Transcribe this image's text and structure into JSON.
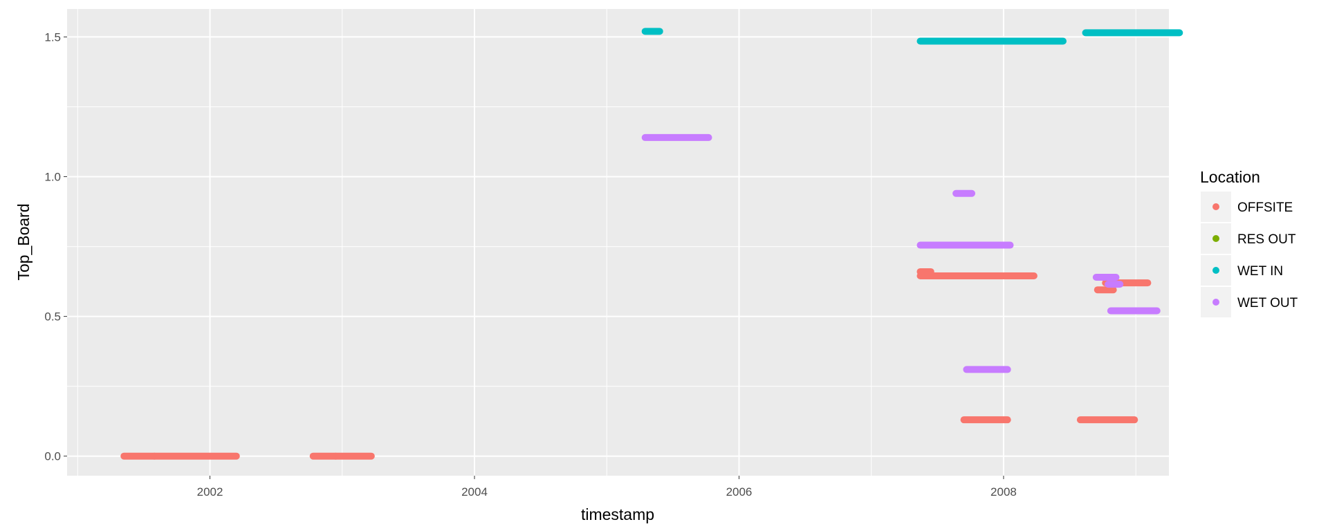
{
  "chart_data": {
    "type": "scatter",
    "xlabel": "timestamp",
    "ylabel": "Top_Board",
    "x_ticks": [
      "2002",
      "2004",
      "2006",
      "2008"
    ],
    "y_ticks": [
      "0.0",
      "0.5",
      "1.0",
      "1.5"
    ],
    "xlim": [
      2000.92,
      2009.25
    ],
    "ylim": [
      -0.07,
      1.6
    ],
    "grid": true,
    "legend": {
      "title": "Location",
      "placement": "right",
      "entries": [
        {
          "name": "OFFSITE",
          "color": "#F8766D"
        },
        {
          "name": "RES OUT",
          "color": "#7CAE00"
        },
        {
          "name": "WET IN",
          "color": "#00BFC4"
        },
        {
          "name": "WET OUT",
          "color": "#C77CFF"
        }
      ]
    },
    "series": [
      {
        "name": "OFFSITE",
        "color": "#F8766D",
        "segments": [
          {
            "x": [
              2001.35,
              2001.58
            ],
            "y": 0.0
          },
          {
            "x": [
              2001.58,
              2002.2
            ],
            "y": 0.0
          },
          {
            "x": [
              2002.78,
              2002.95
            ],
            "y": 0.0
          },
          {
            "x": [
              2002.95,
              2003.22
            ],
            "y": 0.0
          },
          {
            "x": [
              2007.37,
              2007.45
            ],
            "y": 0.66
          },
          {
            "x": [
              2007.37,
              2008.23
            ],
            "y": 0.645
          },
          {
            "x": [
              2007.7,
              2008.03
            ],
            "y": 0.13
          },
          {
            "x": [
              2008.58,
              2008.99
            ],
            "y": 0.13
          },
          {
            "x": [
              2008.71,
              2008.83
            ],
            "y": 0.595
          },
          {
            "x": [
              2008.77,
              2009.09
            ],
            "y": 0.62
          }
        ]
      },
      {
        "name": "RES OUT",
        "color": "#7CAE00",
        "segments": []
      },
      {
        "name": "WET IN",
        "color": "#00BFC4",
        "segments": [
          {
            "x": [
              2005.29,
              2005.4
            ],
            "y": 1.52
          },
          {
            "x": [
              2007.37,
              2007.88
            ],
            "y": 1.485
          },
          {
            "x": [
              2007.88,
              2008.45
            ],
            "y": 1.485
          },
          {
            "x": [
              2008.62,
              2009.33
            ],
            "y": 1.515
          }
        ]
      },
      {
        "name": "WET OUT",
        "color": "#C77CFF",
        "segments": [
          {
            "x": [
              2005.29,
              2005.77
            ],
            "y": 1.14
          },
          {
            "x": [
              2007.37,
              2008.05
            ],
            "y": 0.755
          },
          {
            "x": [
              2007.64,
              2007.76
            ],
            "y": 0.94
          },
          {
            "x": [
              2007.72,
              2008.03
            ],
            "y": 0.31
          },
          {
            "x": [
              2008.7,
              2008.85
            ],
            "y": 0.64
          },
          {
            "x": [
              2008.79,
              2008.88
            ],
            "y": 0.615
          },
          {
            "x": [
              2008.81,
              2009.16
            ],
            "y": 0.52
          }
        ]
      }
    ]
  }
}
